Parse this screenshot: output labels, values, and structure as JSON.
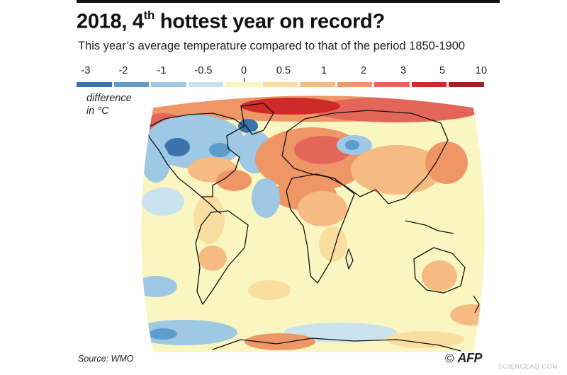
{
  "title_main": "2018, 4",
  "title_sup": "th",
  "title_rest": " hottest year on record?",
  "subtitle": "This year’s average temperature compared to that of the period 1850-1900",
  "legend": {
    "labels": [
      "-3",
      "-2",
      "-1",
      "-0.5",
      "0",
      "0.5",
      "1",
      "2",
      "3",
      "5",
      "10"
    ],
    "colors": [
      "#3a72ac",
      "#5d9ccc",
      "#9ec8e3",
      "#cbe3ec",
      "#faf6c2",
      "#f9dea0",
      "#f6bb82",
      "#ef9667",
      "#e4665b",
      "#cf2a2a",
      "#9d2222"
    ],
    "note_line1": "difference",
    "note_line2": "in °C"
  },
  "map_colors": {
    "base": "#faf6c2",
    "light_orange": "#f9dea0",
    "orange": "#f6bb82",
    "dark_orange": "#ef9667",
    "red": "#e4665b",
    "deep_red": "#cf2a2a",
    "light_blue": "#cbe3ec",
    "blue": "#9ec8e3",
    "mid_blue": "#5d9ccc",
    "dark_blue": "#3a72ac",
    "coast": "#111111"
  },
  "source": "Source: WMO",
  "credit_symbol": "©",
  "credit_agency": "AFP",
  "watermark": "SCIENCEAQ.COM"
}
